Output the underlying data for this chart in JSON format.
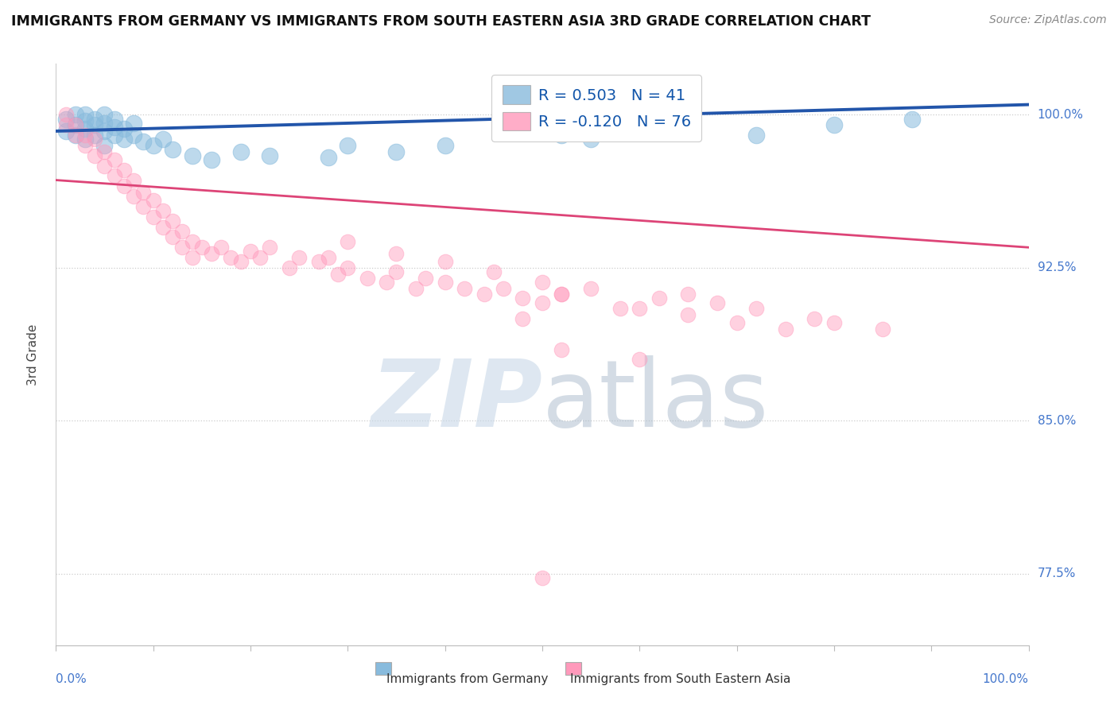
{
  "title": "IMMIGRANTS FROM GERMANY VS IMMIGRANTS FROM SOUTH EASTERN ASIA 3RD GRADE CORRELATION CHART",
  "source": "Source: ZipAtlas.com",
  "ylabel": "3rd Grade",
  "ytick_labels": [
    "77.5%",
    "85.0%",
    "92.5%",
    "100.0%"
  ],
  "ytick_values": [
    77.5,
    85.0,
    92.5,
    100.0
  ],
  "xlim": [
    0.0,
    100.0
  ],
  "ylim": [
    74.0,
    102.5
  ],
  "legend_blue_label": "R = 0.503   N = 41",
  "legend_pink_label": "R = -0.120   N = 76",
  "legend_label_blue": "Immigrants from Germany",
  "legend_label_pink": "Immigrants from South Eastern Asia",
  "blue_color": "#88BBDD",
  "pink_color": "#FF99BB",
  "blue_line_color": "#2255AA",
  "pink_line_color": "#DD4477",
  "watermark_zip_color": "#C8D8E8",
  "watermark_atlas_color": "#AABBCC",
  "blue_line_x": [
    0,
    100
  ],
  "blue_line_y": [
    99.2,
    100.5
  ],
  "pink_line_x": [
    0,
    100
  ],
  "pink_line_y": [
    96.8,
    93.5
  ],
  "blue_scatter_x": [
    1,
    1,
    2,
    2,
    2,
    3,
    3,
    3,
    3,
    4,
    4,
    4,
    5,
    5,
    5,
    5,
    6,
    6,
    6,
    7,
    7,
    8,
    8,
    9,
    10,
    11,
    12,
    14,
    16,
    19,
    22,
    30,
    52,
    65,
    72,
    80,
    88,
    55,
    40,
    35,
    28
  ],
  "blue_scatter_y": [
    99.2,
    99.8,
    99.5,
    100.0,
    99.0,
    98.8,
    99.3,
    99.7,
    100.0,
    99.0,
    99.5,
    99.8,
    98.5,
    99.2,
    99.6,
    100.0,
    99.0,
    99.4,
    99.8,
    98.8,
    99.3,
    99.0,
    99.6,
    98.7,
    98.5,
    98.8,
    98.3,
    98.0,
    97.8,
    98.2,
    98.0,
    98.5,
    99.0,
    99.2,
    99.0,
    99.5,
    99.8,
    98.8,
    98.5,
    98.2,
    97.9
  ],
  "pink_scatter_x": [
    1,
    1,
    2,
    2,
    3,
    3,
    4,
    4,
    5,
    5,
    6,
    6,
    7,
    7,
    8,
    8,
    9,
    9,
    10,
    10,
    11,
    11,
    12,
    12,
    13,
    13,
    14,
    14,
    15,
    16,
    17,
    18,
    19,
    20,
    21,
    22,
    24,
    25,
    27,
    29,
    30,
    32,
    34,
    35,
    37,
    38,
    40,
    42,
    44,
    46,
    48,
    50,
    52,
    55,
    58,
    62,
    65,
    68,
    72,
    78,
    80,
    85,
    30,
    35,
    40,
    45,
    50,
    52,
    60,
    65,
    70,
    75,
    52,
    60,
    48,
    28
  ],
  "pink_scatter_y": [
    99.5,
    100.0,
    99.0,
    99.5,
    98.5,
    99.0,
    98.0,
    98.8,
    97.5,
    98.2,
    97.0,
    97.8,
    96.5,
    97.3,
    96.0,
    96.8,
    95.5,
    96.2,
    95.0,
    95.8,
    94.5,
    95.3,
    94.0,
    94.8,
    93.5,
    94.3,
    93.0,
    93.8,
    93.5,
    93.2,
    93.5,
    93.0,
    92.8,
    93.3,
    93.0,
    93.5,
    92.5,
    93.0,
    92.8,
    92.2,
    92.5,
    92.0,
    91.8,
    92.3,
    91.5,
    92.0,
    91.8,
    91.5,
    91.2,
    91.5,
    91.0,
    90.8,
    91.2,
    91.5,
    90.5,
    91.0,
    91.2,
    90.8,
    90.5,
    90.0,
    89.8,
    89.5,
    93.8,
    93.2,
    92.8,
    92.3,
    91.8,
    91.2,
    90.5,
    90.2,
    89.8,
    89.5,
    88.5,
    88.0,
    90.0,
    93.0
  ],
  "pink_outlier_x": [
    50
  ],
  "pink_outlier_y": [
    77.3
  ]
}
